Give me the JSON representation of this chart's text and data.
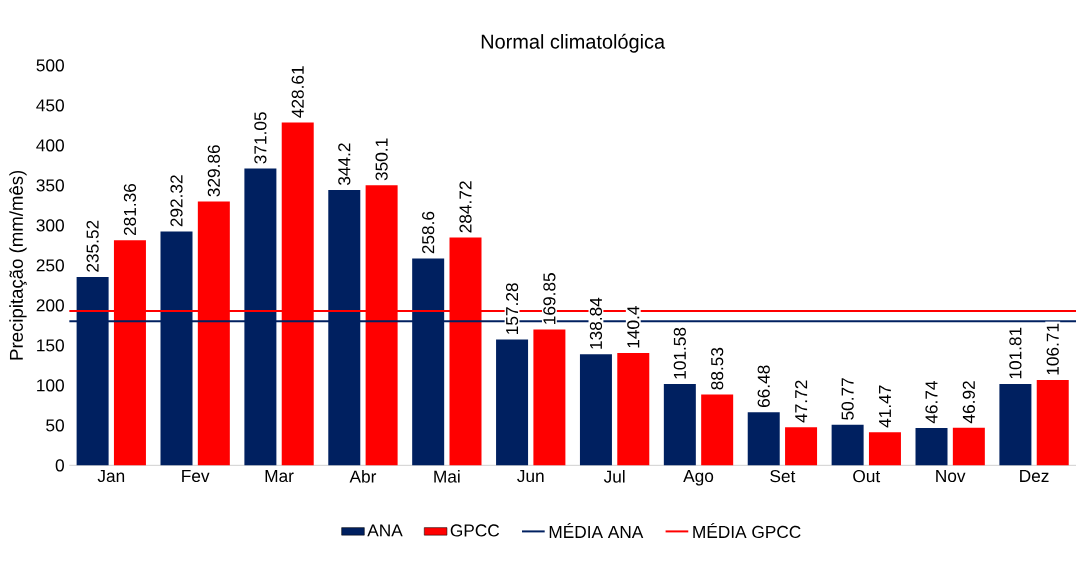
{
  "chart_data": {
    "type": "bar",
    "title": "Normal climatológica",
    "ylabel": "Precipitação (mm/mês)",
    "categories": [
      "Jan",
      "Fev",
      "Mar",
      "Abr",
      "Mai",
      "Jun",
      "Jul",
      "Ago",
      "Set",
      "Out",
      "Nov",
      "Dez"
    ],
    "series": [
      {
        "name": "ANA",
        "color": "#002060",
        "values": [
          235.52,
          292.32,
          371.05,
          344.2,
          258.6,
          157.28,
          138.84,
          101.58,
          66.48,
          50.77,
          46.74,
          101.81
        ],
        "value_labels": [
          "235.52",
          "292.32",
          "371.05",
          "344.2",
          "258.6",
          "157.28",
          "138.84",
          "101.58",
          "66.48",
          "50.77",
          "46.74",
          "101.81"
        ]
      },
      {
        "name": "GPCC",
        "color": "#ff0000",
        "values": [
          281.36,
          329.86,
          428.61,
          350.1,
          284.72,
          169.85,
          140.4,
          88.53,
          47.72,
          41.47,
          46.92,
          106.71
        ],
        "value_labels": [
          "281.36",
          "329.86",
          "428.61",
          "350.1",
          "284.72",
          "169.85",
          "140.4",
          "88.53",
          "47.72",
          "41.47",
          "46.92",
          "106.71"
        ]
      }
    ],
    "ref_lines": [
      {
        "axis": "y",
        "value": 180,
        "label": "MÉDIA ANA",
        "color": "#002060"
      },
      {
        "axis": "y",
        "value": 193,
        "label": "MÉDIA GPCC",
        "color": "#ff0000"
      }
    ],
    "ylim": [
      0,
      500
    ],
    "yticks": [
      0,
      50,
      100,
      150,
      200,
      250,
      300,
      350,
      400,
      450,
      500
    ],
    "legend": "bottom",
    "grid": false
  }
}
